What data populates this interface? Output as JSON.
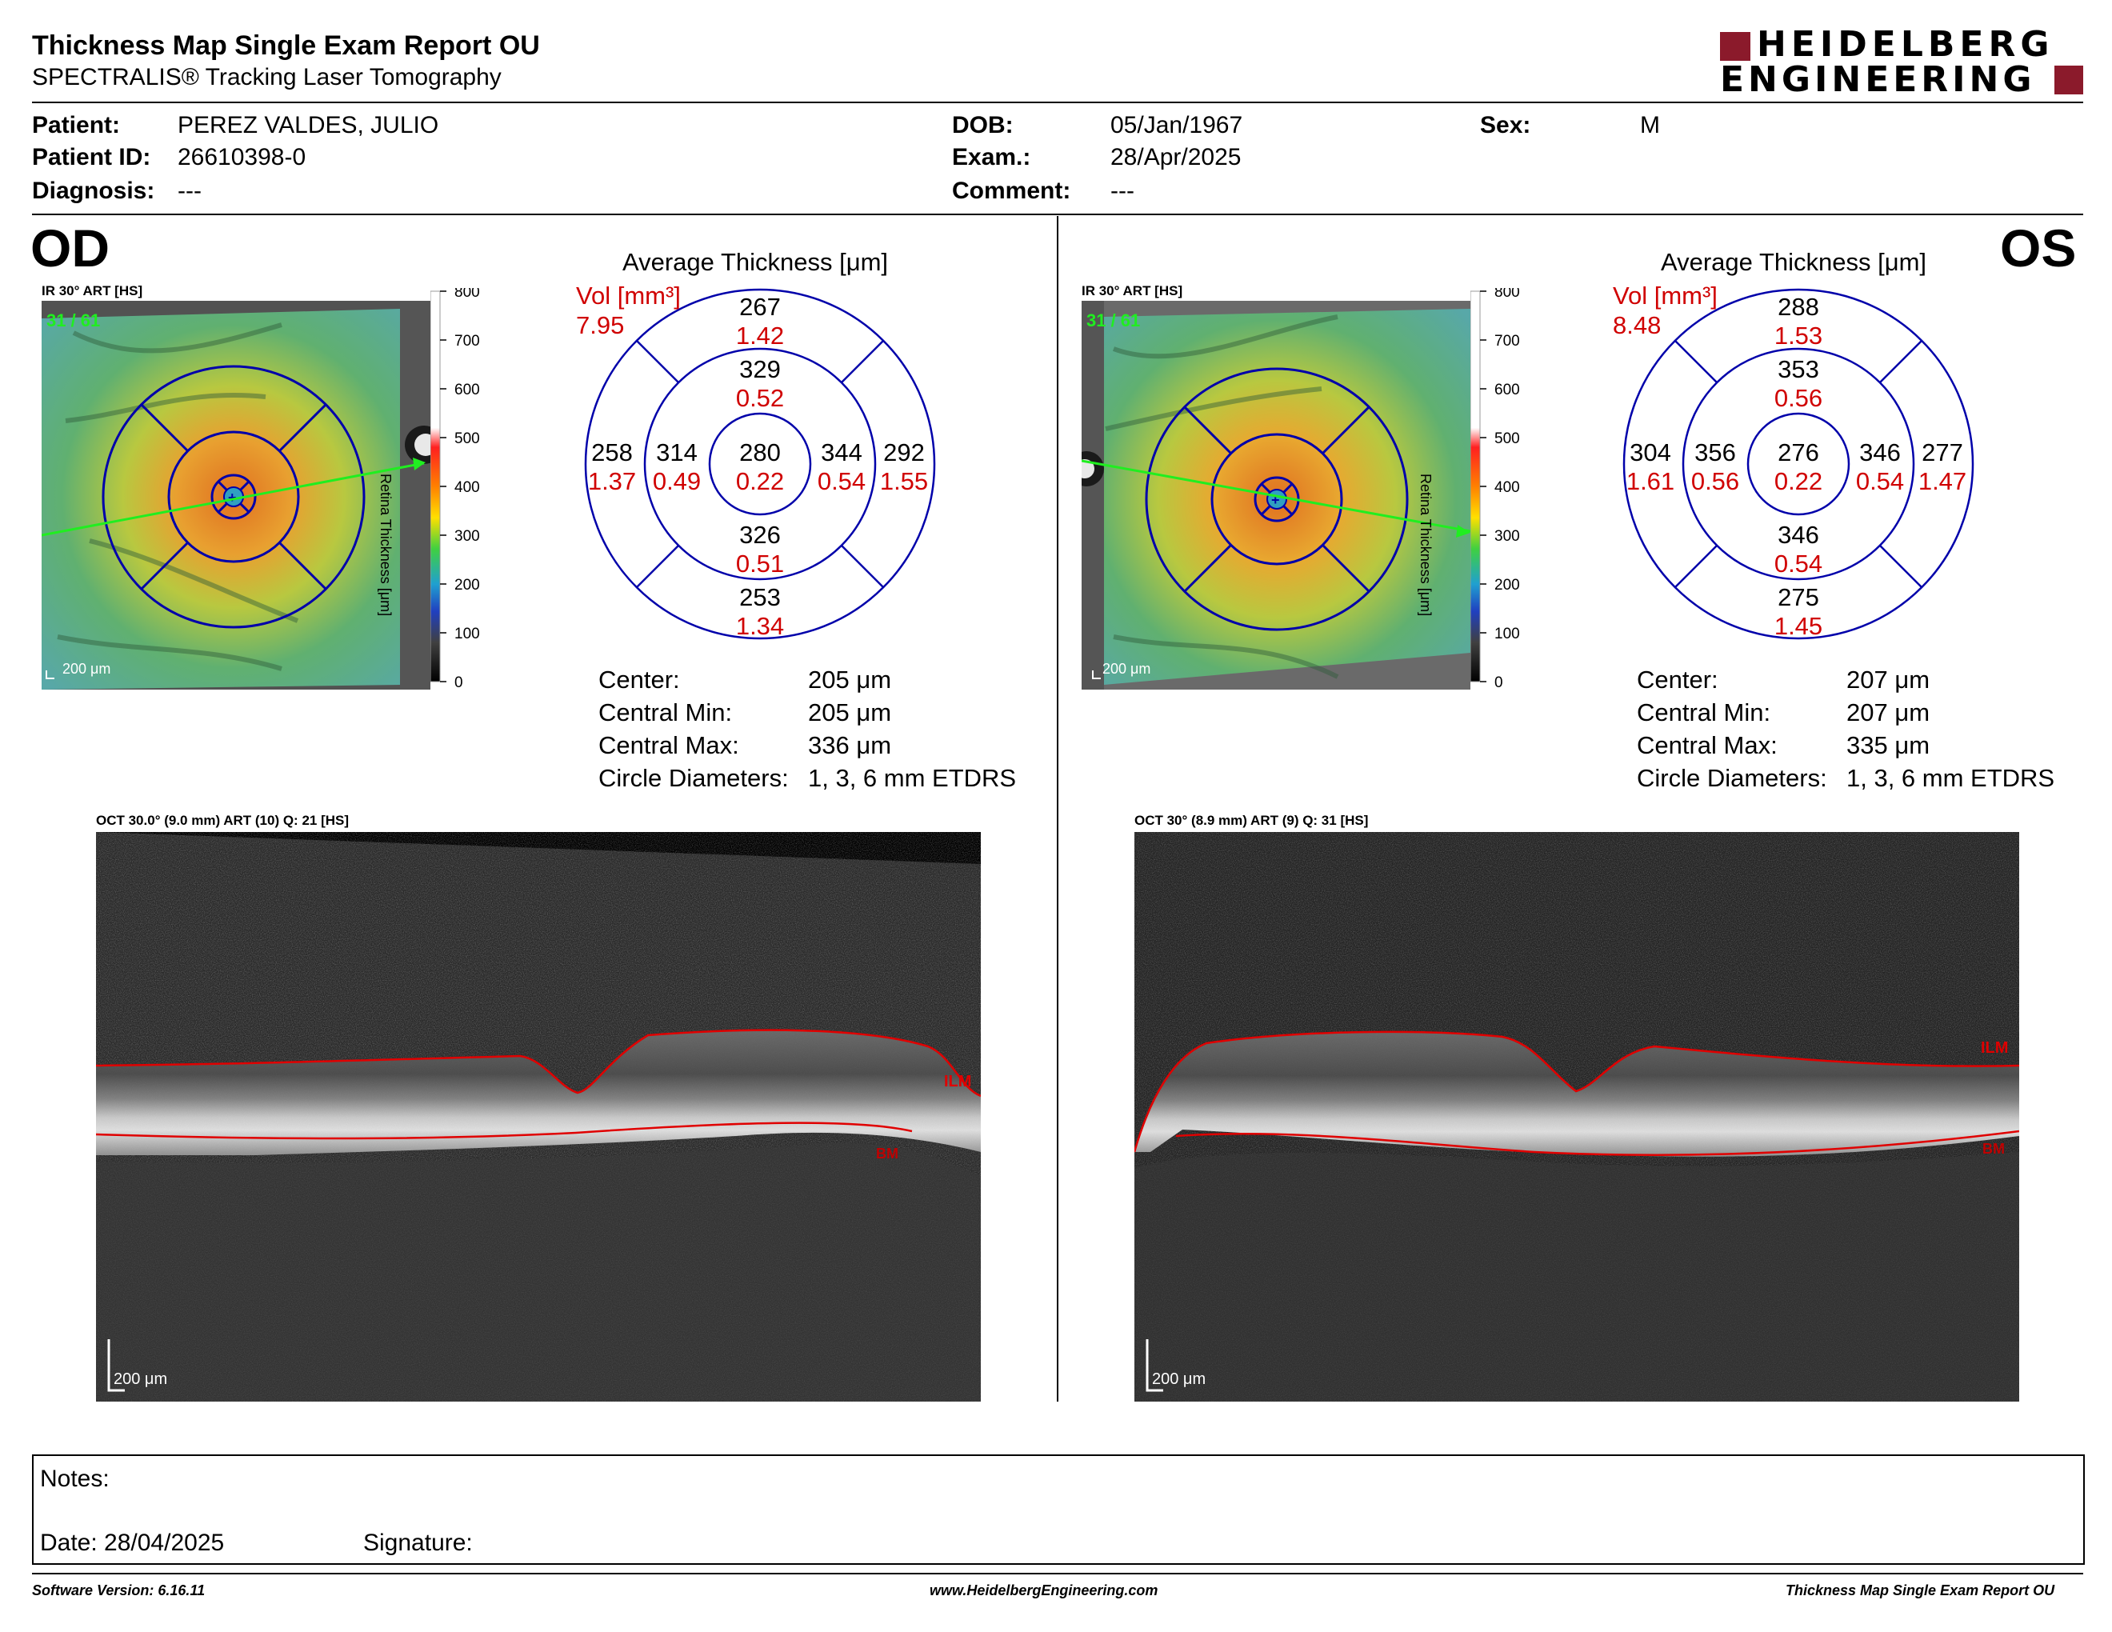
{
  "header": {
    "title": "Thickness Map Single Exam Report OU",
    "subtitle": "SPECTRALIS® Tracking Laser Tomography",
    "logo_line1": "HEIDELBERG",
    "logo_line2": "ENGINEERING"
  },
  "patient": {
    "patient_label": "Patient:",
    "patient_value": "PEREZ VALDES, JULIO",
    "id_label": "Patient ID:",
    "id_value": "26610398-0",
    "diagnosis_label": "Diagnosis:",
    "diagnosis_value": "---",
    "dob_label": "DOB:",
    "dob_value": "05/Jan/1967",
    "exam_label": "Exam.:",
    "exam_value": "28/Apr/2025",
    "comment_label": "Comment:",
    "comment_value": "---",
    "sex_label": "Sex:",
    "sex_value": "M"
  },
  "scale": {
    "ticks": [
      "800",
      "700",
      "600",
      "500",
      "400",
      "300",
      "200",
      "100",
      "0"
    ],
    "label": "Retina Thickness [μm]"
  },
  "od": {
    "eye": "OD",
    "ir_caption": "IR 30° ART [HS]",
    "frames": "31 / 61",
    "scalebar": "200 μm",
    "avg_title": "Average Thickness [μm]",
    "vol_label": "Vol [mm³]",
    "vol_total": "7.95",
    "sectors": {
      "outer_sup": {
        "t": "267",
        "v": "1.42"
      },
      "inner_sup": {
        "t": "329",
        "v": "0.52"
      },
      "outer_left": {
        "t": "258",
        "v": "1.37"
      },
      "inner_left": {
        "t": "314",
        "v": "0.49"
      },
      "center": {
        "t": "280",
        "v": "0.22"
      },
      "inner_right": {
        "t": "344",
        "v": "0.54"
      },
      "outer_right": {
        "t": "292",
        "v": "1.55"
      },
      "inner_inf": {
        "t": "326",
        "v": "0.51"
      },
      "outer_inf": {
        "t": "253",
        "v": "1.34"
      }
    },
    "stats": [
      {
        "label": "Center:",
        "value": "205 μm"
      },
      {
        "label": "Central Min:",
        "value": "205 μm"
      },
      {
        "label": "Central Max:",
        "value": "336 μm"
      },
      {
        "label": "Circle Diameters:",
        "value": "1, 3, 6 mm ETDRS"
      }
    ],
    "oct_caption": "OCT 30.0° (9.0 mm) ART (10) Q: 21 [HS]",
    "ilm_label": "ILM",
    "bm_label": "BM",
    "oct_scalebar": "200 μm"
  },
  "os": {
    "eye": "OS",
    "ir_caption": "IR 30° ART [HS]",
    "frames": "31 / 61",
    "scalebar": "200 μm",
    "avg_title": "Average Thickness [μm]",
    "vol_label": "Vol [mm³]",
    "vol_total": "8.48",
    "sectors": {
      "outer_sup": {
        "t": "288",
        "v": "1.53"
      },
      "inner_sup": {
        "t": "353",
        "v": "0.56"
      },
      "outer_left": {
        "t": "304",
        "v": "1.61"
      },
      "inner_left": {
        "t": "356",
        "v": "0.56"
      },
      "center": {
        "t": "276",
        "v": "0.22"
      },
      "inner_right": {
        "t": "346",
        "v": "0.54"
      },
      "outer_right": {
        "t": "277",
        "v": "1.47"
      },
      "inner_inf": {
        "t": "346",
        "v": "0.54"
      },
      "outer_inf": {
        "t": "275",
        "v": "1.45"
      }
    },
    "stats": [
      {
        "label": "Center:",
        "value": "207 μm"
      },
      {
        "label": "Central Min:",
        "value": "207 μm"
      },
      {
        "label": "Central Max:",
        "value": "335 μm"
      },
      {
        "label": "Circle Diameters:",
        "value": "1, 3, 6 mm ETDRS"
      }
    ],
    "oct_caption": "OCT 30° (8.9 mm) ART (9) Q: 31 [HS]",
    "ilm_label": "ILM",
    "bm_label": "BM",
    "oct_scalebar": "200 μm"
  },
  "notes": {
    "notes_label": "Notes:",
    "date_label": "Date: 28/04/2025",
    "signature_label": "Signature:"
  },
  "footer": {
    "software": "Software Version: 6.16.11",
    "website": "www.HeidelbergEngineering.com",
    "report": "Thickness Map Single Exam Report OU"
  },
  "colors": {
    "ring_blue": "#0000aa",
    "value_red": "#d00000",
    "logo_red": "#8b1a2b"
  }
}
